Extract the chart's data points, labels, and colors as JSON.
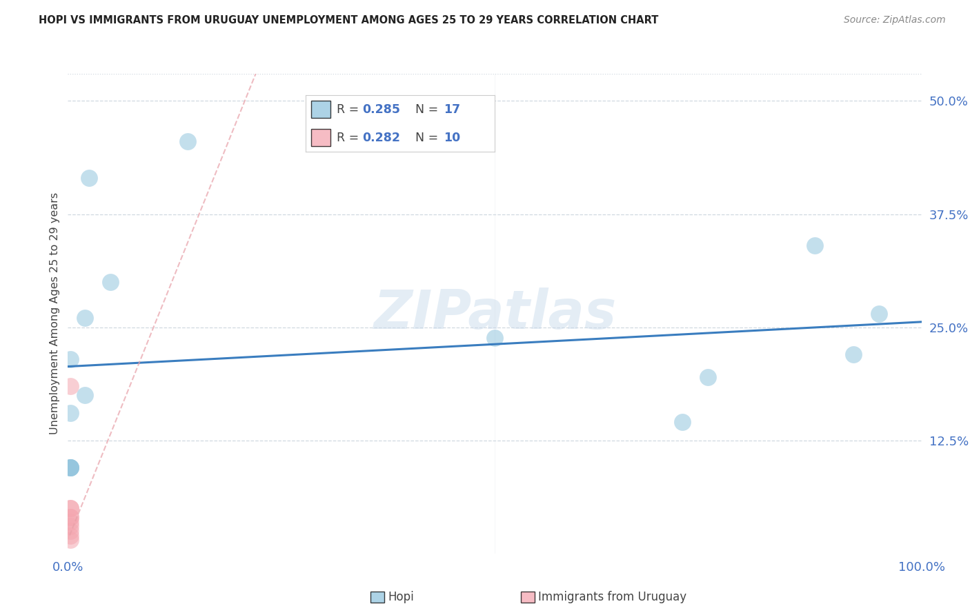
{
  "title": "HOPI VS IMMIGRANTS FROM URUGUAY UNEMPLOYMENT AMONG AGES 25 TO 29 YEARS CORRELATION CHART",
  "source": "Source: ZipAtlas.com",
  "ylabel_label": "Unemployment Among Ages 25 to 29 years",
  "hopi_color": "#92c5de",
  "uruguay_color": "#f4a6b0",
  "trendline_hopi_color": "#3a7dbf",
  "trendline_uruguay_color": "#e8a0a8",
  "legend_R_hopi": "0.285",
  "legend_N_hopi": "17",
  "legend_R_uruguay": "0.282",
  "legend_N_uruguay": "10",
  "hopi_x": [
    0.003,
    0.02,
    0.025,
    0.05,
    0.14,
    0.5,
    0.72,
    0.75,
    0.875,
    0.92,
    0.95
  ],
  "hopi_y": [
    0.215,
    0.26,
    0.415,
    0.3,
    0.455,
    0.238,
    0.145,
    0.195,
    0.34,
    0.22,
    0.265
  ],
  "hopi_x2": [
    0.003,
    0.02,
    0.003,
    0.003,
    0.003,
    0.003
  ],
  "hopi_y2": [
    0.155,
    0.175,
    0.095,
    0.095,
    0.095,
    0.095
  ],
  "uruguay_x": [
    0.003,
    0.003,
    0.003,
    0.003,
    0.003,
    0.003,
    0.003,
    0.003,
    0.003,
    0.003
  ],
  "uruguay_y": [
    0.185,
    0.05,
    0.05,
    0.04,
    0.04,
    0.035,
    0.03,
    0.025,
    0.02,
    0.015
  ],
  "xlim": [
    0.0,
    1.0
  ],
  "ylim": [
    0.0,
    0.53
  ],
  "yticks": [
    0.125,
    0.25,
    0.375,
    0.5
  ],
  "ytick_labels": [
    "12.5%",
    "25.0%",
    "37.5%",
    "50.0%"
  ],
  "xtick_labels_left": "0.0%",
  "xtick_labels_right": "100.0%",
  "background_color": "#ffffff",
  "watermark": "ZIPatlas",
  "grid_color": "#d0d8e0",
  "legend_label_hopi": "Hopi",
  "legend_label_uruguay": "Immigrants from Uruguay"
}
